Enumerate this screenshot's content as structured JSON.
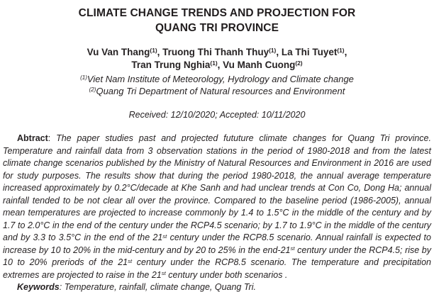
{
  "page": {
    "background_color": "#ffffff",
    "text_color": "#262223"
  },
  "title": {
    "line1": "CLIMATE CHANGE TRENDS AND PROJECTION FOR",
    "line2": "QUANG TRI PROVINCE"
  },
  "authors": {
    "line1": [
      {
        "t": "Vu Van Thang"
      },
      {
        "t": "(1)",
        "sup": true
      },
      {
        "t": ", Truong Thi Thanh Thuy"
      },
      {
        "t": "(1)",
        "sup": true
      },
      {
        "t": ", La Thi Tuyet"
      },
      {
        "t": "(1)",
        "sup": true
      },
      {
        "t": ","
      }
    ],
    "line2": [
      {
        "t": "Tran Trung Nghia"
      },
      {
        "t": "(1)",
        "sup": true
      },
      {
        "t": ", Vu Manh Cuong"
      },
      {
        "t": "(2)",
        "sup": true
      }
    ]
  },
  "affiliations": {
    "line1": [
      {
        "t": "(1)",
        "sup": true
      },
      {
        "t": "Viet Nam Institute of Meteorology, Hydrology and Climate change"
      }
    ],
    "line2": [
      {
        "t": "(2)",
        "sup": true
      },
      {
        "t": "Quang Tri Department of Natural resources and Environment"
      }
    ]
  },
  "received": "Received: 12/10/2020; Accepted: 10/11/2020",
  "abstract": {
    "label": "Abtract",
    "separator": ": ",
    "segments": [
      {
        "t": "The paper studies past and projected fututure climate changes for Quang Tri province. Temperature and rainfall data from 3 observation stations in the period of 1980-2018 and from the latest climate change scenarios published by the Ministry of Natural Resources and Environment in 2016 are used for study purposes. The results show that during the period 1980-2018, the annual average temperature increased approximately by 0.2°C/decade at Khe Sanh and had unclear trends at Con Co, Dong Ha; annual rainfall tended to be not clear all over the province. Compared to the baseline period (1986-2005), annual mean temperatures are projected to increase commonly by 1.4 to 1.5°C in the middle of the century and by 1.7 to 2.0°C in the end of the century under the RCP4.5 scenario; by 1.7 to 1.9°C in the middle of the century and by 3.3 to 3.5°C in the end of the 21"
      },
      {
        "t": "st",
        "sup": true
      },
      {
        "t": " century under the RCP8.5 scenario. Annual rainfall is expected to increase by 10 to 20% in the mid-century and by 20 to 25% in the end-21"
      },
      {
        "t": "st",
        "sup": true
      },
      {
        "t": " century under the RCP4.5; rise by 10 to 20% preriods of the 21"
      },
      {
        "t": "st",
        "sup": true
      },
      {
        "t": " century under the RCP8.5 scenario. The temperature and precipitation extremes are projected to raise in the 21"
      },
      {
        "t": "st",
        "sup": true
      },
      {
        "t": " century under both scenarios ."
      }
    ]
  },
  "keywords": {
    "label": "Keywords",
    "separator": ": ",
    "text": "Temperature, rainfall, climate change, Quang Tri."
  }
}
